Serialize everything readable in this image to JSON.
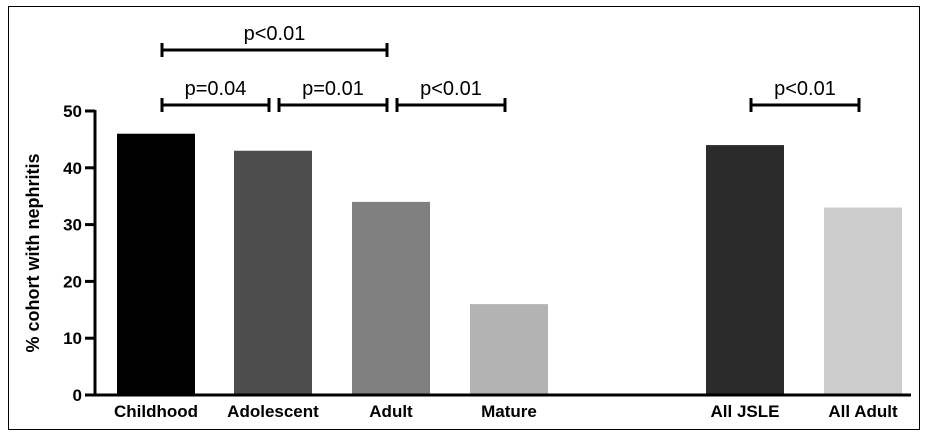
{
  "chart_data": {
    "type": "bar",
    "ylabel": "% cohort with nephritis",
    "ylim": [
      0,
      50
    ],
    "yticks": [
      0,
      10,
      20,
      30,
      40,
      50
    ],
    "categories": [
      "Childhood",
      "Adolescent",
      "Adult",
      "Mature",
      "All JSLE",
      "All Adult"
    ],
    "values": [
      46,
      43,
      34,
      16,
      44,
      33
    ],
    "colors": [
      "#000000",
      "#4d4d4d",
      "#808080",
      "#b3b3b3",
      "#2b2b2b",
      "#cccccc"
    ],
    "grid": false,
    "comparisons": [
      {
        "from": "Childhood",
        "to": "Adult",
        "label": "p<0.01",
        "level": 2
      },
      {
        "from": "Childhood",
        "to": "Adolescent",
        "label": "p=0.04",
        "level": 1
      },
      {
        "from": "Adolescent",
        "to": "Adult",
        "label": "p=0.01",
        "level": 1
      },
      {
        "from": "Adult",
        "to": "Mature",
        "label": "p<0.01",
        "level": 1
      },
      {
        "from": "All JSLE",
        "to": "All Adult",
        "label": "p<0.01",
        "level": 1
      }
    ]
  }
}
